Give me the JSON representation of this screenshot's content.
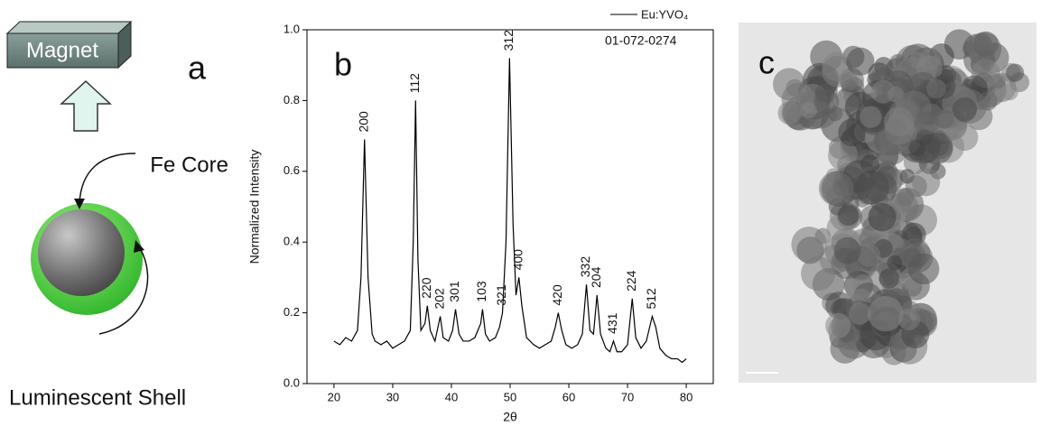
{
  "panel_a": {
    "letter": "a",
    "magnet": "Magnet",
    "core": "Fe Core",
    "shell": "Luminescent Shell"
  },
  "panel_c": {
    "letter": "c"
  },
  "chart_data": {
    "type": "line",
    "letter": "b",
    "x_label": "2θ",
    "y_label": "Normalized Intensity",
    "xlim": [
      15.4,
      84.6
    ],
    "ylim": [
      0,
      1.0
    ],
    "xticks": [
      20,
      30,
      40,
      50,
      60,
      70,
      80
    ],
    "yticks": [
      {
        "value": 0,
        "label": "0.0"
      },
      0.2,
      0.4,
      0.6,
      0.8,
      {
        "value": 1,
        "label": "1.0"
      }
    ],
    "x": [
      20,
      21,
      22,
      23,
      24,
      24.6,
      25.2,
      25.8,
      26.5,
      27,
      28,
      29,
      30,
      31,
      32,
      33,
      33.5,
      33.9,
      34.3,
      34.8,
      35.5,
      35.9,
      36.4,
      37.2,
      38.1,
      38.6,
      39.5,
      40.2,
      40.7,
      41.3,
      42,
      43,
      44,
      45,
      45.3,
      45.8,
      46.5,
      47.5,
      48.2,
      48.7,
      49.3,
      49.9,
      50.5,
      51,
      51.5,
      52,
      52.8,
      54,
      55,
      56,
      57,
      57.7,
      58.2,
      58.8,
      59.5,
      60.5,
      61.5,
      62.3,
      63,
      63.6,
      64.2,
      64.8,
      65.4,
      66.3,
      67,
      67.6,
      68.2,
      69,
      70,
      70.8,
      71.4,
      72.3,
      73.2,
      74.2,
      74.8,
      75.5,
      76.5,
      77.5,
      78.5,
      79.3,
      80
    ],
    "series": [
      {
        "name": "Eu:YVO₄",
        "color": "#000000",
        "values": [
          0.12,
          0.11,
          0.13,
          0.12,
          0.15,
          0.3,
          0.69,
          0.3,
          0.14,
          0.12,
          0.11,
          0.12,
          0.1,
          0.11,
          0.12,
          0.15,
          0.4,
          0.8,
          0.35,
          0.15,
          0.17,
          0.22,
          0.15,
          0.12,
          0.19,
          0.13,
          0.12,
          0.15,
          0.21,
          0.14,
          0.12,
          0.12,
          0.13,
          0.17,
          0.21,
          0.14,
          0.12,
          0.13,
          0.16,
          0.2,
          0.4,
          0.92,
          0.45,
          0.25,
          0.3,
          0.22,
          0.13,
          0.11,
          0.1,
          0.11,
          0.12,
          0.16,
          0.2,
          0.15,
          0.11,
          0.1,
          0.11,
          0.14,
          0.28,
          0.15,
          0.14,
          0.25,
          0.14,
          0.1,
          0.09,
          0.12,
          0.09,
          0.09,
          0.11,
          0.24,
          0.13,
          0.1,
          0.12,
          0.19,
          0.16,
          0.1,
          0.08,
          0.07,
          0.07,
          0.06,
          0.07
        ]
      }
    ],
    "reference": "01-072-0274",
    "peaks": [
      {
        "label": "200",
        "x": 25.2,
        "y": 0.69
      },
      {
        "label": "112",
        "x": 33.9,
        "y": 0.8
      },
      {
        "label": "220",
        "x": 35.9,
        "y": 0.22
      },
      {
        "label": "202",
        "x": 38.1,
        "y": 0.19
      },
      {
        "label": "301",
        "x": 40.7,
        "y": 0.21
      },
      {
        "label": "103",
        "x": 45.3,
        "y": 0.21
      },
      {
        "label": "321",
        "x": 48.7,
        "y": 0.2
      },
      {
        "label": "312",
        "x": 49.9,
        "y": 0.92
      },
      {
        "label": "400",
        "x": 51.5,
        "y": 0.3
      },
      {
        "label": "420",
        "x": 58.2,
        "y": 0.2
      },
      {
        "label": "332",
        "x": 63,
        "y": 0.28
      },
      {
        "label": "204",
        "x": 64.8,
        "y": 0.25
      },
      {
        "label": "431",
        "x": 67.6,
        "y": 0.12
      },
      {
        "label": "224",
        "x": 70.8,
        "y": 0.24
      },
      {
        "label": "512",
        "x": 74.2,
        "y": 0.19
      }
    ]
  }
}
